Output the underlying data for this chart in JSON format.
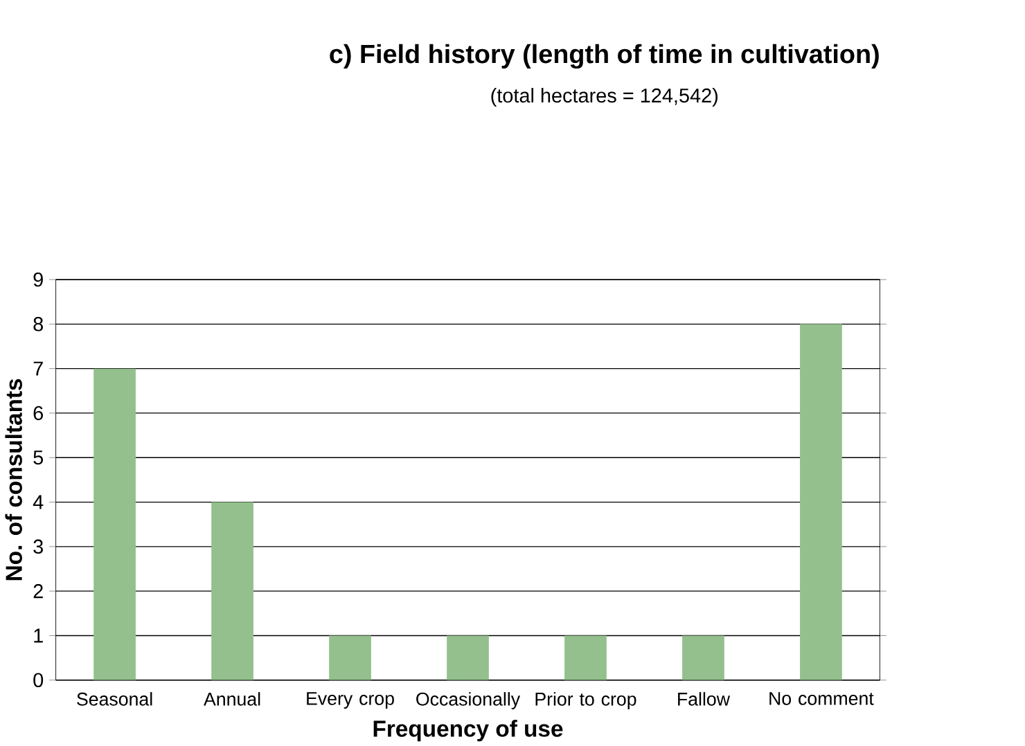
{
  "chart_data": {
    "type": "bar",
    "title": "c) Field history (length of time in cultivation)",
    "subtitle": "(total hectares = 124,542)",
    "xlabel": "Frequency of use",
    "ylabel": "No. of consultants",
    "categories": [
      "Seasonal",
      "Annual",
      "Every crop",
      "Occasionally",
      "Prior to crop",
      "Fallow",
      "No comment"
    ],
    "values": [
      7,
      4,
      1,
      1,
      1,
      1,
      8
    ],
    "color": "#93c08c",
    "ylim": [
      0,
      9
    ],
    "yticks": [
      0,
      1,
      2,
      3,
      4,
      5,
      6,
      7,
      8,
      9
    ],
    "grid": "y"
  }
}
